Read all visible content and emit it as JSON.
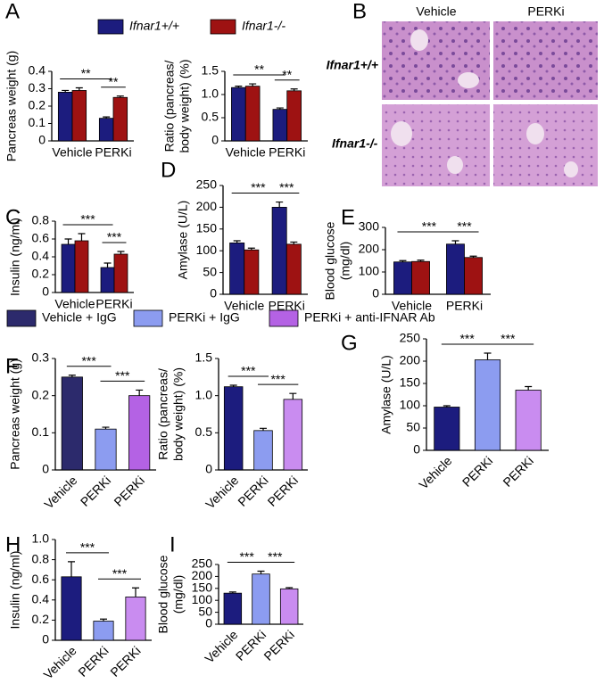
{
  "legends": [
    [
      {
        "name": "Ifnar1+/+",
        "color": "#1c1c7e"
      },
      {
        "name": "Ifnar1-/-",
        "color": "#9e1212"
      }
    ],
    [
      {
        "name": "Vehicle + IgG",
        "color": "#2c2a6c"
      },
      {
        "name": "PERKi + IgG",
        "color": "#8c9cf0"
      },
      {
        "name": "PERKi + anti-IFNAR Ab",
        "color": "#b462e4"
      }
    ]
  ],
  "image_panel": {
    "panel": "B",
    "columns": [
      "Vehicle",
      "PERKi"
    ],
    "rows": [
      "Ifnar1+/+",
      "Ifnar1-/-"
    ]
  },
  "chart_data": [
    {
      "type": "bar",
      "panel": "A",
      "ylabel": [
        "Pancreas weight (g)"
      ],
      "categories": [
        "Vehicle",
        "PERKi"
      ],
      "series": [
        {
          "name": "Ifnar1+/+",
          "color": "#1c1c7e",
          "values": [
            0.28,
            0.13
          ],
          "errors": [
            0.01,
            0.008
          ]
        },
        {
          "name": "Ifnar1-/-",
          "color": "#9e1212",
          "values": [
            0.29,
            0.25
          ],
          "errors": [
            0.015,
            0.008
          ]
        }
      ],
      "ylim": [
        0,
        0.4
      ],
      "yticks": [
        0,
        0.1,
        0.2,
        0.3,
        0.4
      ],
      "annotations": [
        "**",
        "**"
      ]
    },
    {
      "type": "bar",
      "ylabel": [
        "Ratio (pancreas/",
        "body weight) (%)"
      ],
      "categories": [
        "Vehicle",
        "PERKi"
      ],
      "series": [
        {
          "name": "Ifnar1+/+",
          "color": "#1c1c7e",
          "values": [
            1.15,
            0.68
          ],
          "errors": [
            0.03,
            0.03
          ]
        },
        {
          "name": "Ifnar1-/-",
          "color": "#9e1212",
          "values": [
            1.18,
            1.08
          ],
          "errors": [
            0.05,
            0.04
          ]
        }
      ],
      "ylim": [
        0,
        1.5
      ],
      "yticks": [
        0,
        0.5,
        {
          "value": 1.0,
          "label": "1.0"
        },
        1.5
      ],
      "annotations": [
        "**",
        "**"
      ]
    },
    {
      "type": "bar",
      "panel": "C",
      "ylabel": [
        "Insulin (ng/ml)"
      ],
      "categories": [
        "Vehicle",
        "PERKi"
      ],
      "series": [
        {
          "name": "Ifnar1+/+",
          "color": "#1c1c7e",
          "values": [
            0.54,
            0.28
          ],
          "errors": [
            0.06,
            0.05
          ]
        },
        {
          "name": "Ifnar1-/-",
          "color": "#9e1212",
          "values": [
            0.58,
            0.43
          ],
          "errors": [
            0.08,
            0.03
          ]
        }
      ],
      "ylim": [
        0,
        0.8
      ],
      "yticks": [
        0,
        0.2,
        0.4,
        0.6,
        0.8
      ],
      "annotations": [
        "***",
        "***"
      ]
    },
    {
      "type": "bar",
      "panel": "D",
      "ylabel": [
        "Amylase (U/L)"
      ],
      "categories": [
        "Vehicle",
        "PERKi"
      ],
      "series": [
        {
          "name": "Ifnar1+/+",
          "color": "#1c1c7e",
          "values": [
            118,
            200
          ],
          "errors": [
            5,
            12
          ]
        },
        {
          "name": "Ifnar1-/-",
          "color": "#9e1212",
          "values": [
            102,
            115
          ],
          "errors": [
            4,
            5
          ]
        }
      ],
      "ylim": [
        0,
        250
      ],
      "yticks": [
        0,
        50,
        100,
        150,
        200,
        250
      ],
      "annotations": [
        "***",
        "***"
      ]
    },
    {
      "type": "bar",
      "panel": "E",
      "ylabel": [
        "Blood glucose",
        "(mg/dl)"
      ],
      "categories": [
        "Vehicle",
        "PERKi"
      ],
      "series": [
        {
          "name": "Ifnar1+/+",
          "color": "#1c1c7e",
          "values": [
            145,
            225
          ],
          "errors": [
            6,
            15
          ]
        },
        {
          "name": "Ifnar1-/-",
          "color": "#9e1212",
          "values": [
            147,
            165
          ],
          "errors": [
            6,
            6
          ]
        }
      ],
      "ylim": [
        0,
        300
      ],
      "yticks": [
        0,
        100,
        200,
        300
      ],
      "annotations": [
        "***",
        "***"
      ]
    },
    {
      "type": "bar",
      "panel": "F",
      "ylabel": [
        "Pancreas weight (g)"
      ],
      "categories": [
        "Vehicle",
        "PERKi",
        "PERKi"
      ],
      "values": [
        0.25,
        0.11,
        0.2
      ],
      "errors": [
        0.005,
        0.005,
        0.015
      ],
      "colors": [
        "#2c2a6c",
        "#8c9cf0",
        "#b462e4"
      ],
      "ylim": [
        0,
        0.3
      ],
      "yticks": [
        0,
        0.1,
        0.2,
        0.3
      ],
      "annotations": [
        "***",
        "***"
      ]
    },
    {
      "type": "bar",
      "ylabel": [
        "Ratio (pancreas/",
        "body weight) (%)"
      ],
      "categories": [
        "Vehicle",
        "PERKi",
        "PERKi"
      ],
      "values": [
        1.12,
        0.53,
        0.95
      ],
      "errors": [
        0.02,
        0.03,
        0.08
      ],
      "colors": [
        "#1c1c7e",
        "#8c9cf0",
        "#c98cf0"
      ],
      "ylim": [
        0,
        1.5
      ],
      "yticks": [
        0,
        0.5,
        {
          "value": 1.0,
          "label": "1.0"
        },
        1.5
      ],
      "annotations": [
        "***",
        "***"
      ]
    },
    {
      "type": "bar",
      "panel": "G",
      "ylabel": [
        "Amylase (U/L)"
      ],
      "categories": [
        "Vehicle",
        "PERKi",
        "PERKi"
      ],
      "values": [
        97,
        203,
        135
      ],
      "errors": [
        3,
        15,
        8
      ],
      "colors": [
        "#1c1c7e",
        "#8c9cf0",
        "#c98cf0"
      ],
      "ylim": [
        0,
        250
      ],
      "yticks": [
        0,
        50,
        100,
        150,
        200,
        250
      ],
      "annotations": [
        "***",
        "***"
      ]
    },
    {
      "type": "bar",
      "panel": "H",
      "ylabel": [
        "Insulin (ng/ml)"
      ],
      "categories": [
        "Vehicle",
        "PERKi",
        "PERKi"
      ],
      "values": [
        0.63,
        0.19,
        0.43
      ],
      "errors": [
        0.15,
        0.02,
        0.09
      ],
      "colors": [
        "#1c1c7e",
        "#8c9cf0",
        "#c98cf0"
      ],
      "ylim": [
        0,
        1.0
      ],
      "yticks": [
        0,
        0.2,
        0.4,
        0.6,
        0.8,
        {
          "value": 1.0,
          "label": "1.0"
        }
      ],
      "annotations": [
        "***",
        "***"
      ]
    },
    {
      "type": "bar",
      "panel": "I",
      "ylabel": [
        "Blood glucose",
        "(mg/dl)"
      ],
      "categories": [
        "Vehicle",
        "PERKi",
        "PERKi"
      ],
      "values": [
        130,
        210,
        148
      ],
      "errors": [
        5,
        12,
        5
      ],
      "colors": [
        "#1c1c7e",
        "#8c9cf0",
        "#c98cf0"
      ],
      "ylim": [
        0,
        250
      ],
      "yticks": [
        0,
        50,
        100,
        150,
        200,
        250
      ],
      "annotations": [
        "***",
        "***"
      ]
    }
  ]
}
